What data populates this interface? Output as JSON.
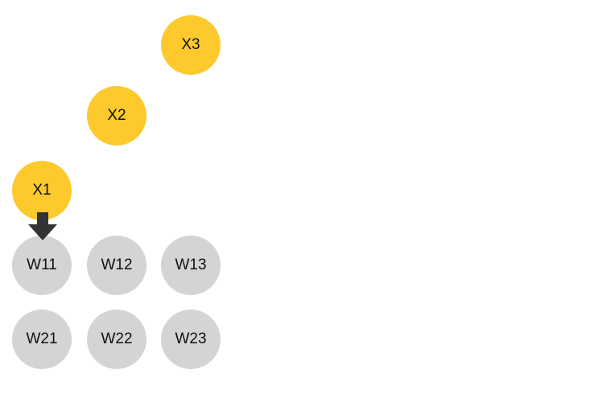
{
  "inputs": [
    {
      "label": "X1",
      "color": "#fdc92c"
    },
    {
      "label": "X2",
      "color": "#fdc92c"
    },
    {
      "label": "X3",
      "color": "#fdc92c"
    }
  ],
  "weights": {
    "row1": [
      "W11",
      "W12",
      "W13"
    ],
    "row2": [
      "W21",
      "W22",
      "W23"
    ],
    "color": "#d4d4d4"
  },
  "arrow": {
    "icon": "arrow-down-icon",
    "color": "#333333"
  }
}
